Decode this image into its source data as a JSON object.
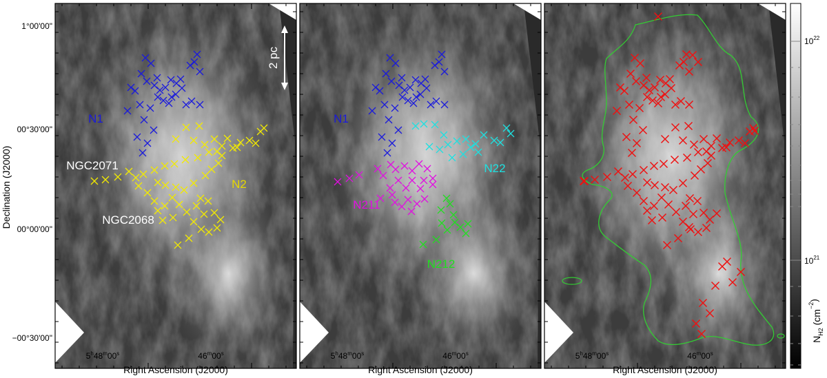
{
  "axes": {
    "xlabel": "Right Ascension (J2000)",
    "ylabel": "Declination (J2000)",
    "xticks": [
      "5h48m00s",
      "46m00s"
    ],
    "yticks": [
      "1°00'00\"",
      "00°30'00\"",
      "00°00'00\"",
      "−00°30'00\""
    ]
  },
  "scalebar": {
    "label": "2 pc"
  },
  "colorbar": {
    "label": "N_H2 (cm^-2)",
    "ticks": [
      "10^22",
      "10^21"
    ],
    "scale": "log"
  },
  "panels": [
    {
      "labels": [
        {
          "text": "N1",
          "color": "#1a1adc"
        },
        {
          "text": "NGC2071",
          "color": "#ffffff"
        },
        {
          "text": "N2",
          "color": "#e6d800"
        },
        {
          "text": "NGC2068",
          "color": "#ffffff"
        }
      ]
    },
    {
      "labels": [
        {
          "text": "N1",
          "color": "#1a1adc"
        },
        {
          "text": "N22",
          "color": "#1ee0e0"
        },
        {
          "text": "N211",
          "color": "#e010e0"
        },
        {
          "text": "N212",
          "color": "#1ee01e"
        }
      ]
    },
    {
      "labels": []
    }
  ],
  "marker_colors": {
    "N1": "#1a1adc",
    "N2": "#f2ea00",
    "N22": "#1ee0e0",
    "N211": "#e010e0",
    "N212": "#22dd22",
    "all": "#ee1111"
  },
  "contour_color": "#33cc33"
}
